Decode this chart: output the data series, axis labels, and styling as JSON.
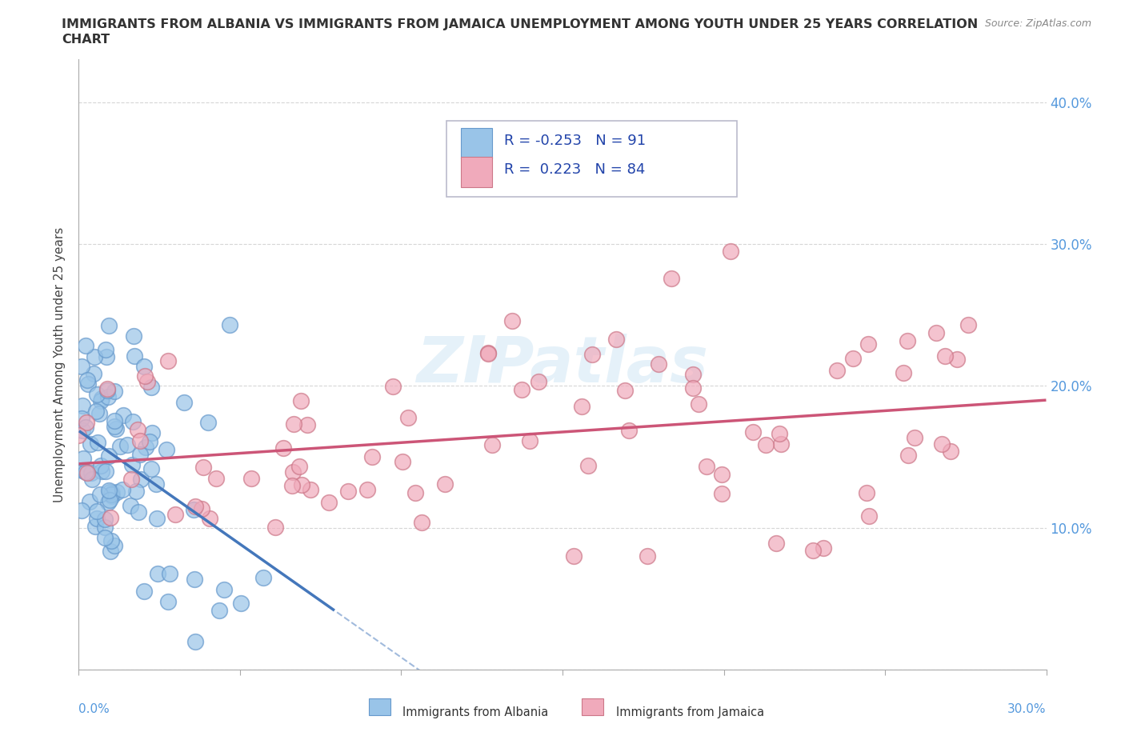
{
  "title_line1": "IMMIGRANTS FROM ALBANIA VS IMMIGRANTS FROM JAMAICA UNEMPLOYMENT AMONG YOUTH UNDER 25 YEARS CORRELATION",
  "title_line2": "CHART",
  "source": "Source: ZipAtlas.com",
  "ylabel": "Unemployment Among Youth under 25 years",
  "color_albania": "#99C4E8",
  "color_albania_edge": "#6699CC",
  "color_jamaica": "#F0AABB",
  "color_jamaica_edge": "#CC7788",
  "color_trend_albania": "#4477BB",
  "color_trend_jamaica": "#CC5577",
  "R_albania": -0.253,
  "N_albania": 91,
  "R_jamaica": 0.223,
  "N_jamaica": 84,
  "watermark": "ZIPatlas",
  "background_color": "#ffffff",
  "grid_color": "#cccccc",
  "xlim": [
    0.0,
    0.3
  ],
  "ylim": [
    0.0,
    0.43
  ],
  "yticks": [
    0.0,
    0.1,
    0.2,
    0.3,
    0.4
  ],
  "ytick_labels": [
    "",
    "10.0%",
    "20.0%",
    "30.0%",
    "40.0%"
  ],
  "xtick_labels": [
    "0.0%",
    "",
    "",
    "",
    "",
    "",
    "30.0%"
  ]
}
